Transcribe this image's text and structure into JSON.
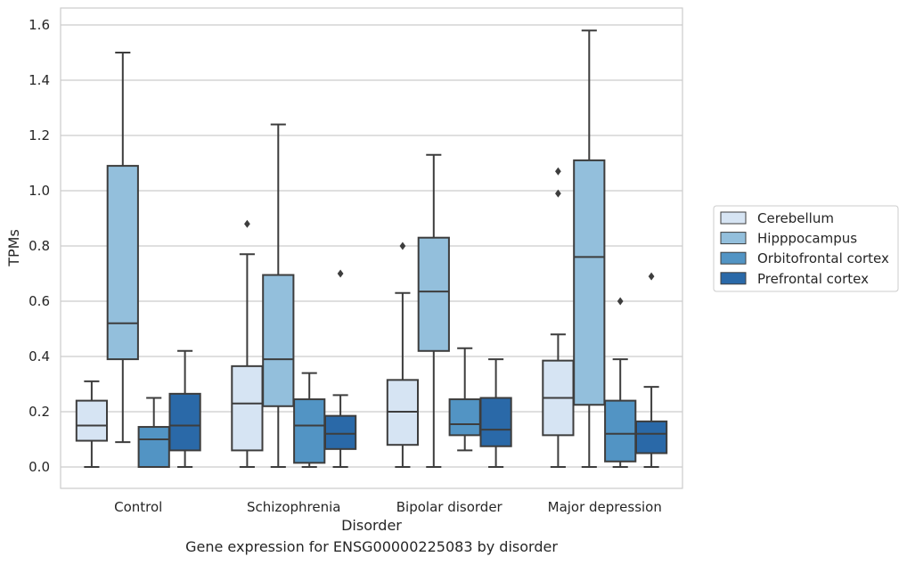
{
  "caption": "Gene expression for ENSG00000225083 by disorder",
  "chart_data": {
    "type": "box",
    "xlabel": "Disorder",
    "ylabel": "TPMs",
    "ylim": [
      -0.08,
      1.66
    ],
    "yticks": [
      "0.0",
      "0.2",
      "0.4",
      "0.6",
      "0.8",
      "1.0",
      "1.2",
      "1.4",
      "1.6"
    ],
    "grid": "horizontal",
    "legend_position": "right",
    "categories": [
      "Control",
      "Schizophrenia",
      "Bipolar disorder",
      "Major depression"
    ],
    "series": [
      {
        "name": "Cerebellum",
        "color": "#d6e4f3",
        "boxes": [
          {
            "whislo": 0.0,
            "q1": 0.095,
            "med": 0.15,
            "q3": 0.24,
            "whishi": 0.31,
            "fliers": []
          },
          {
            "whislo": 0.0,
            "q1": 0.06,
            "med": 0.23,
            "q3": 0.365,
            "whishi": 0.77,
            "fliers": [
              0.88
            ]
          },
          {
            "whislo": 0.0,
            "q1": 0.08,
            "med": 0.2,
            "q3": 0.315,
            "whishi": 0.63,
            "fliers": [
              0.8
            ]
          },
          {
            "whislo": 0.0,
            "q1": 0.115,
            "med": 0.25,
            "q3": 0.385,
            "whishi": 0.48,
            "fliers": [
              0.99,
              1.07
            ]
          }
        ]
      },
      {
        "name": "Hipppocampus",
        "color": "#93bfdc",
        "boxes": [
          {
            "whislo": 0.09,
            "q1": 0.39,
            "med": 0.52,
            "q3": 1.09,
            "whishi": 1.5,
            "fliers": []
          },
          {
            "whislo": 0.0,
            "q1": 0.22,
            "med": 0.39,
            "q3": 0.695,
            "whishi": 1.24,
            "fliers": []
          },
          {
            "whislo": 0.0,
            "q1": 0.42,
            "med": 0.635,
            "q3": 0.83,
            "whishi": 1.13,
            "fliers": []
          },
          {
            "whislo": 0.0,
            "q1": 0.225,
            "med": 0.76,
            "q3": 1.11,
            "whishi": 1.58,
            "fliers": []
          }
        ]
      },
      {
        "name": "Orbitofrontal cortex",
        "color": "#5294c4",
        "boxes": [
          {
            "whislo": 0.0,
            "q1": 0.0,
            "med": 0.1,
            "q3": 0.145,
            "whishi": 0.25,
            "fliers": []
          },
          {
            "whislo": 0.0,
            "q1": 0.015,
            "med": 0.15,
            "q3": 0.245,
            "whishi": 0.34,
            "fliers": []
          },
          {
            "whislo": 0.06,
            "q1": 0.115,
            "med": 0.155,
            "q3": 0.245,
            "whishi": 0.43,
            "fliers": []
          },
          {
            "whislo": 0.0,
            "q1": 0.02,
            "med": 0.12,
            "q3": 0.24,
            "whishi": 0.39,
            "fliers": [
              0.6
            ]
          }
        ]
      },
      {
        "name": "Prefrontal cortex",
        "color": "#2a69a8",
        "boxes": [
          {
            "whislo": 0.0,
            "q1": 0.06,
            "med": 0.15,
            "q3": 0.265,
            "whishi": 0.42,
            "fliers": []
          },
          {
            "whislo": 0.0,
            "q1": 0.065,
            "med": 0.12,
            "q3": 0.185,
            "whishi": 0.26,
            "fliers": [
              0.7
            ]
          },
          {
            "whislo": 0.0,
            "q1": 0.075,
            "med": 0.135,
            "q3": 0.25,
            "whishi": 0.39,
            "fliers": []
          },
          {
            "whislo": 0.0,
            "q1": 0.05,
            "med": 0.12,
            "q3": 0.165,
            "whishi": 0.29,
            "fliers": [
              0.69
            ]
          }
        ]
      }
    ]
  }
}
